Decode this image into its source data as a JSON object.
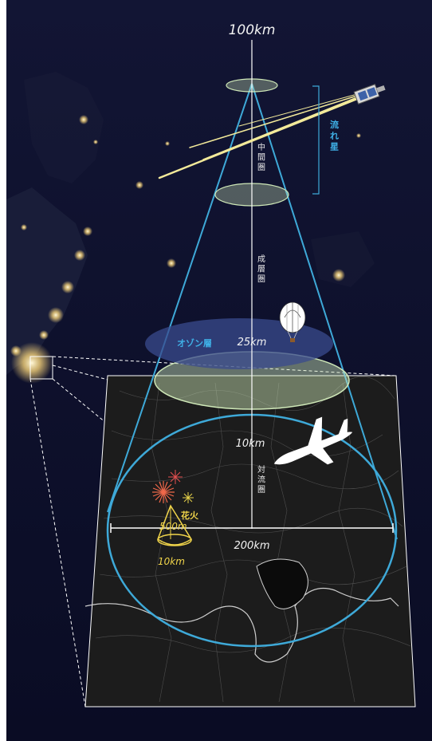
{
  "labels": {
    "top_altitude": "100km",
    "stratosphere_top": "25km",
    "troposphere_top": "10km",
    "base_diameter": "200km",
    "ozone_layer": "オゾン層",
    "meteors": "流れ星",
    "mesosphere": "中間圏",
    "stratosphere": "成層圏",
    "troposphere": "対流圏",
    "fireworks": "花火",
    "fireworks_height": "500m",
    "fireworks_range": "10km"
  },
  "colors": {
    "sky": "#0d0f2c",
    "cone_line": "#3ea9d8",
    "ellipse_fill": "#cfe8b8",
    "ozone_fill": "#3a4b8e",
    "ozone_text": "#3fb0e6",
    "meteor": "#f3ea9a",
    "firework_label": "#f0d44a",
    "map_bg": "#1a1a1a"
  },
  "icons": [
    "satellite-icon",
    "hot-air-balloon-icon",
    "airplane-icon",
    "fireworks-icon"
  ]
}
